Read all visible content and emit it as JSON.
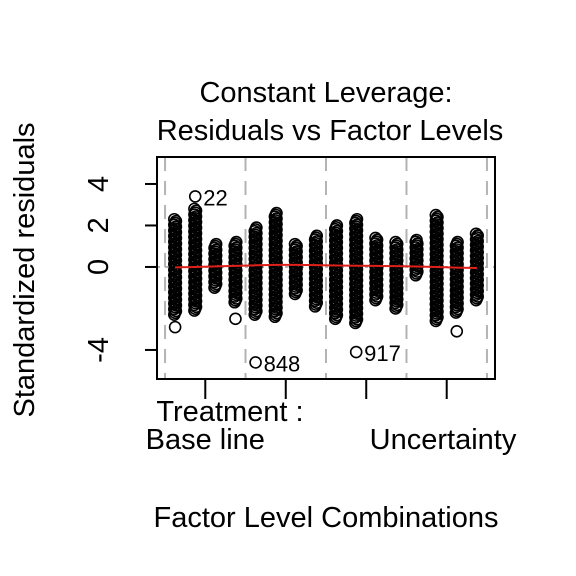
{
  "chart_data": {
    "type": "scatter",
    "title_line1": "Constant Leverage:",
    "title_line2": "Residuals vs Factor Levels",
    "xlabel": "Factor Level Combinations",
    "ylabel": "Standardized residuals",
    "factor_label": "Treatment :",
    "factor_levels": [
      "Base line",
      "Uncertainty"
    ],
    "ylim": [
      -5.4,
      5.3
    ],
    "y_ticks": [
      -4,
      0,
      2,
      4
    ],
    "y_tick_labels": [
      "-4",
      "0",
      "2",
      "4"
    ],
    "num_groups": 16,
    "group_separators": [
      0.5,
      4.5,
      8.5,
      12.5,
      16.5
    ],
    "group_mean_line": [
      -0.02,
      0.0,
      0.03,
      0.05,
      0.08,
      0.1,
      0.1,
      0.09,
      0.07,
      0.06,
      0.05,
      0.04,
      0.02,
      0.0,
      -0.03,
      -0.05
    ],
    "groups": [
      {
        "pos": 1,
        "column": [
          -2.3,
          2.3
        ],
        "extra": [
          -2.9
        ]
      },
      {
        "pos": 2,
        "column": [
          -2.1,
          2.8
        ],
        "extra": [
          3.4
        ]
      },
      {
        "pos": 3,
        "column": [
          -1.0,
          1.1
        ],
        "extra": []
      },
      {
        "pos": 4,
        "column": [
          -1.7,
          1.2
        ],
        "extra": [
          -2.5
        ]
      },
      {
        "pos": 5,
        "column": [
          -2.3,
          1.9
        ],
        "extra": [
          -4.6
        ]
      },
      {
        "pos": 6,
        "column": [
          -2.4,
          2.6
        ],
        "extra": []
      },
      {
        "pos": 7,
        "column": [
          -1.3,
          1.1
        ],
        "extra": []
      },
      {
        "pos": 8,
        "column": [
          -1.9,
          1.5
        ],
        "extra": []
      },
      {
        "pos": 9,
        "column": [
          -2.5,
          2.0
        ],
        "extra": []
      },
      {
        "pos": 10,
        "column": [
          -2.7,
          2.3
        ],
        "extra": [
          -4.1
        ]
      },
      {
        "pos": 11,
        "column": [
          -1.6,
          1.4
        ],
        "extra": []
      },
      {
        "pos": 12,
        "column": [
          -2.0,
          1.2
        ],
        "extra": []
      },
      {
        "pos": 13,
        "column": [
          -0.4,
          1.3
        ],
        "extra": []
      },
      {
        "pos": 14,
        "column": [
          -2.6,
          2.5
        ],
        "extra": []
      },
      {
        "pos": 15,
        "column": [
          -2.2,
          1.2
        ],
        "extra": [
          -3.1
        ]
      },
      {
        "pos": 16,
        "column": [
          -1.6,
          1.6
        ],
        "extra": []
      }
    ],
    "annotations": [
      {
        "text": "22",
        "group": 2,
        "y": 3.4
      },
      {
        "text": "848",
        "group": 5,
        "y": -4.6
      },
      {
        "text": "917",
        "group": 10,
        "y": -4.1
      }
    ],
    "grid": false,
    "fit_line_color": "#e0201b",
    "separator_color": "#b3b3b3",
    "point_color": "#000000"
  }
}
